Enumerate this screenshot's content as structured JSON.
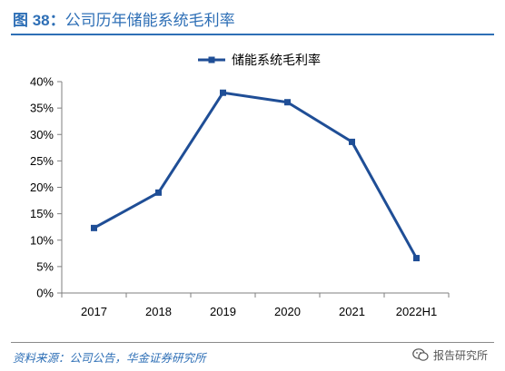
{
  "figure": {
    "label": "图 38：",
    "title": "公司历年储能系统毛利率"
  },
  "chart_data": {
    "type": "line",
    "categories": [
      "2017",
      "2018",
      "2019",
      "2020",
      "2021",
      "2022H1"
    ],
    "series": [
      {
        "name": "储能系统毛利率",
        "values": [
          12.3,
          19.0,
          37.9,
          36.1,
          28.6,
          6.6
        ],
        "color": "#1f4e96"
      }
    ],
    "ylim": [
      0,
      40
    ],
    "yticks": [
      "0%",
      "5%",
      "10%",
      "15%",
      "20%",
      "25%",
      "30%",
      "35%",
      "40%"
    ],
    "y_unit": "%",
    "legend_position": "top-center",
    "grid": false
  },
  "footer": {
    "source": "资料来源：公司公告，华金证券研究所",
    "watermark": "报告研究所",
    "watermark_icon": "wechat-icon"
  },
  "colors": {
    "accent": "#2e6fb6",
    "series": "#1f4e96",
    "axis": "#7f7f7f"
  }
}
